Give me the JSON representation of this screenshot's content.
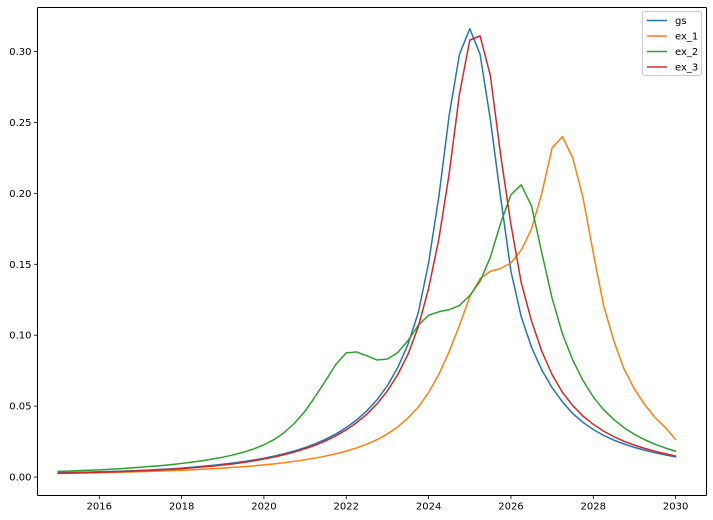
{
  "chart_data": {
    "type": "line",
    "title": "",
    "xlabel": "",
    "ylabel": "",
    "xlim": [
      2014.5,
      2030.75
    ],
    "ylim": [
      -0.013,
      0.331
    ],
    "x_ticks": [
      2016,
      2018,
      2020,
      2022,
      2024,
      2026,
      2028,
      2030
    ],
    "y_ticks": [
      0.0,
      0.05,
      0.1,
      0.15,
      0.2,
      0.25,
      0.3
    ],
    "grid": false,
    "legend_position": "top-right",
    "x": [
      2015.0,
      2015.25,
      2015.5,
      2015.75,
      2016.0,
      2016.25,
      2016.5,
      2016.75,
      2017.0,
      2017.25,
      2017.5,
      2017.75,
      2018.0,
      2018.25,
      2018.5,
      2018.75,
      2019.0,
      2019.25,
      2019.5,
      2019.75,
      2020.0,
      2020.25,
      2020.5,
      2020.75,
      2021.0,
      2021.25,
      2021.5,
      2021.75,
      2022.0,
      2022.25,
      2022.5,
      2022.75,
      2023.0,
      2023.25,
      2023.5,
      2023.75,
      2024.0,
      2024.25,
      2024.5,
      2024.75,
      2025.0,
      2025.25,
      2025.5,
      2025.75,
      2026.0,
      2026.25,
      2026.5,
      2026.75,
      2027.0,
      2027.25,
      2027.5,
      2027.75,
      2028.0,
      2028.25,
      2028.5,
      2028.75,
      2029.0,
      2029.25,
      2029.5,
      2029.75,
      2030.0
    ],
    "series": [
      {
        "name": "gs",
        "color": "#1f77b4",
        "values": [
          0.003,
          0.0032,
          0.0033,
          0.0035,
          0.0037,
          0.0039,
          0.0041,
          0.0044,
          0.0047,
          0.005,
          0.0054,
          0.0058,
          0.0063,
          0.0069,
          0.0075,
          0.0082,
          0.009,
          0.0099,
          0.0109,
          0.012,
          0.0133,
          0.0148,
          0.0165,
          0.0185,
          0.0208,
          0.0235,
          0.0267,
          0.0304,
          0.0349,
          0.0402,
          0.0467,
          0.0546,
          0.0645,
          0.0772,
          0.0936,
          0.116,
          0.151,
          0.198,
          0.255,
          0.298,
          0.316,
          0.298,
          0.252,
          0.197,
          0.145,
          0.113,
          0.0915,
          0.0755,
          0.063,
          0.053,
          0.0448,
          0.0385,
          0.0335,
          0.0294,
          0.026,
          0.0233,
          0.0209,
          0.0189,
          0.0171,
          0.0156,
          0.0142
        ]
      },
      {
        "name": "ex_1",
        "color": "#ff7f0e",
        "values": [
          0.0025,
          0.0026,
          0.0028,
          0.0029,
          0.003,
          0.0032,
          0.0034,
          0.0036,
          0.0038,
          0.004,
          0.0043,
          0.0045,
          0.0048,
          0.0051,
          0.0055,
          0.0059,
          0.0063,
          0.0068,
          0.0073,
          0.0079,
          0.0086,
          0.0093,
          0.0102,
          0.0111,
          0.0122,
          0.0134,
          0.0148,
          0.0164,
          0.0183,
          0.0205,
          0.0232,
          0.0264,
          0.0304,
          0.0354,
          0.0416,
          0.0494,
          0.0596,
          0.0725,
          0.0885,
          0.107,
          0.127,
          0.14,
          0.145,
          0.147,
          0.151,
          0.16,
          0.175,
          0.2,
          0.232,
          0.24,
          0.225,
          0.197,
          0.158,
          0.121,
          0.096,
          0.076,
          0.062,
          0.051,
          0.042,
          0.035,
          0.0265
        ]
      },
      {
        "name": "ex_2",
        "color": "#2ca02c",
        "values": [
          0.004,
          0.0042,
          0.0045,
          0.0048,
          0.0051,
          0.0055,
          0.0059,
          0.0064,
          0.0069,
          0.0075,
          0.0081,
          0.0088,
          0.0096,
          0.0105,
          0.0115,
          0.0127,
          0.014,
          0.0156,
          0.0175,
          0.0198,
          0.0227,
          0.0265,
          0.0315,
          0.0382,
          0.0465,
          0.0569,
          0.068,
          0.0795,
          0.0875,
          0.0882,
          0.0855,
          0.0825,
          0.0832,
          0.0878,
          0.0962,
          0.107,
          0.114,
          0.1165,
          0.118,
          0.121,
          0.128,
          0.138,
          0.155,
          0.179,
          0.199,
          0.206,
          0.191,
          0.158,
          0.126,
          0.101,
          0.0825,
          0.068,
          0.0565,
          0.0475,
          0.0405,
          0.0347,
          0.0301,
          0.0263,
          0.0232,
          0.0205,
          0.0182
        ]
      },
      {
        "name": "ex_3",
        "color": "#d62728",
        "values": [
          0.0027,
          0.0029,
          0.003,
          0.0032,
          0.0034,
          0.0036,
          0.0038,
          0.0041,
          0.0044,
          0.0047,
          0.0051,
          0.0055,
          0.0059,
          0.0065,
          0.0071,
          0.0077,
          0.0085,
          0.0093,
          0.0103,
          0.0114,
          0.0127,
          0.0141,
          0.0158,
          0.0177,
          0.0199,
          0.0225,
          0.0255,
          0.0291,
          0.0333,
          0.0383,
          0.0443,
          0.0517,
          0.0608,
          0.0722,
          0.0866,
          0.106,
          0.133,
          0.168,
          0.214,
          0.27,
          0.308,
          0.311,
          0.283,
          0.227,
          0.178,
          0.137,
          0.11,
          0.0886,
          0.0722,
          0.0598,
          0.0504,
          0.043,
          0.0372,
          0.0324,
          0.0285,
          0.0252,
          0.0225,
          0.0202,
          0.0182,
          0.0164,
          0.0148
        ]
      }
    ]
  }
}
